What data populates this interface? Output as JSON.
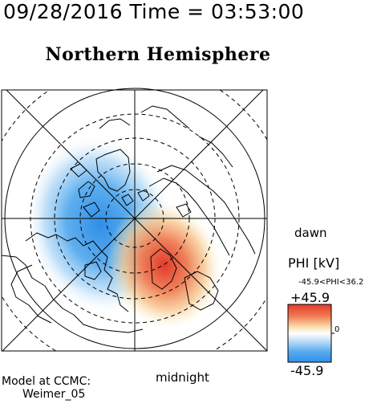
{
  "header": {
    "datetime": "09/28/2016 Time = 03:53:00"
  },
  "map": {
    "title": "Northern Hemisphere",
    "label_right": "dawn",
    "label_bottom": "midnight",
    "colors": {
      "negative": "#4aa3e8",
      "positive": "#e0412d",
      "zero": "#ffffff",
      "land": "#000000"
    }
  },
  "colorbar": {
    "title": "PHI [kV]",
    "range_text": "-45.9<PHI<36.2",
    "max_label": "+45.9",
    "min_label": "-45.9",
    "zero_label": "0",
    "vmin": -45.9,
    "vmax": 45.9
  },
  "credit": {
    "line1": "Model at CCMC:",
    "line2": "Weimer_05"
  }
}
